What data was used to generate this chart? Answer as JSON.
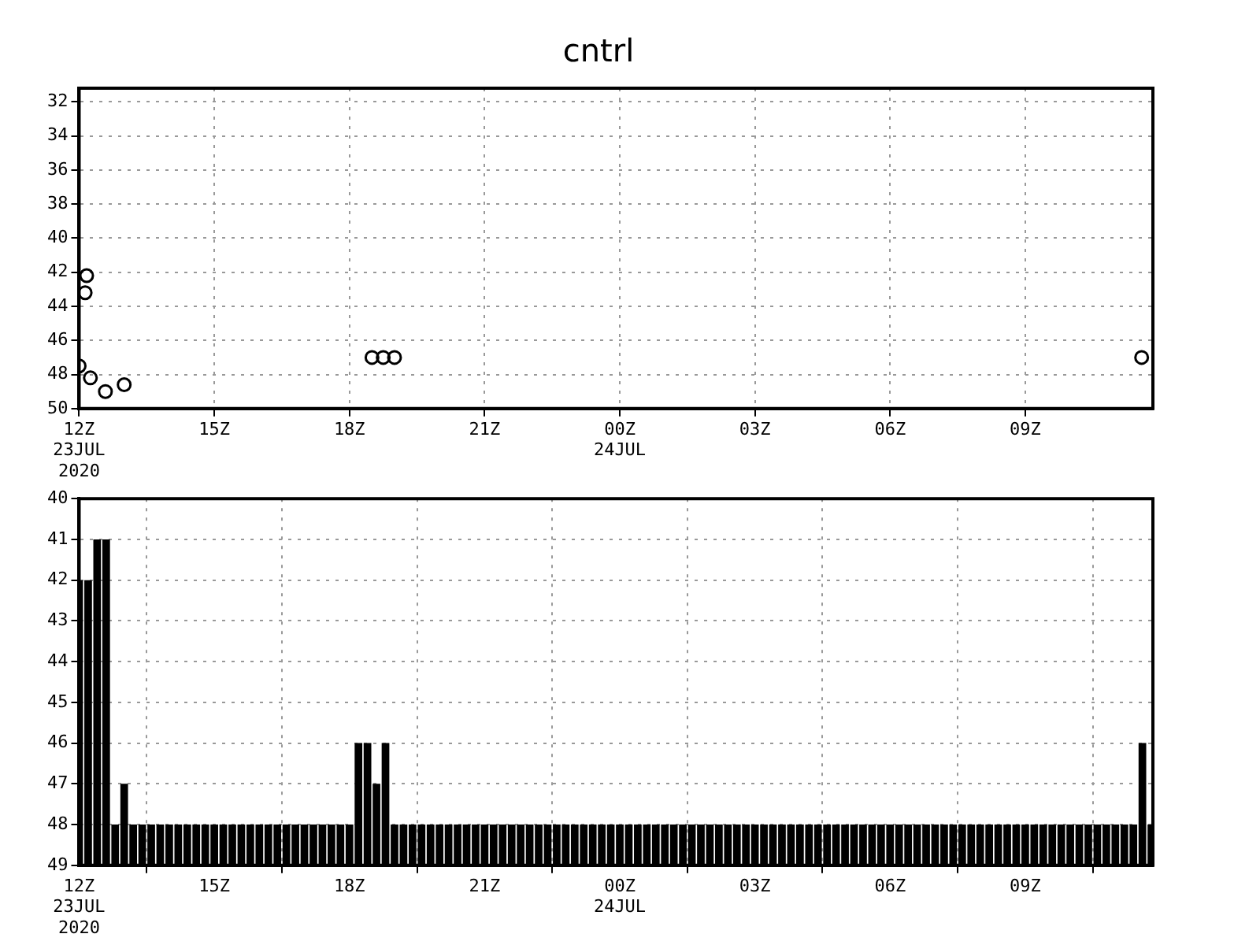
{
  "chart_data": [
    {
      "type": "scatter",
      "title": "cntrl",
      "x": [
        "2020-07-23T12:10",
        "2020-07-23T12:08",
        "2020-07-23T12:00",
        "2020-07-23T12:15",
        "2020-07-23T12:35",
        "2020-07-23T13:00",
        "2020-07-23T18:30",
        "2020-07-23T18:45",
        "2020-07-23T19:00",
        "2020-07-24T11:35"
      ],
      "values": [
        42.2,
        43.2,
        47.5,
        48.2,
        49.0,
        48.6,
        47.0,
        47.0,
        47.0,
        47.0
      ],
      "color": "#000000",
      "marker": "circle",
      "xlim": [
        "2020-07-23T12:00",
        "2020-07-24T11:50"
      ],
      "ylim": [
        50,
        31.2
      ],
      "xticks": [
        {
          "value": "2020-07-23T12:00",
          "label": "12Z\n23JUL\n2020"
        },
        {
          "value": "2020-07-23T15:00",
          "label": "15Z"
        },
        {
          "value": "2020-07-23T18:00",
          "label": "18Z"
        },
        {
          "value": "2020-07-23T21:00",
          "label": "21Z"
        },
        {
          "value": "2020-07-24T00:00",
          "label": "00Z\n24JUL"
        },
        {
          "value": "2020-07-24T03:00",
          "label": "03Z"
        },
        {
          "value": "2020-07-24T06:00",
          "label": "06Z"
        },
        {
          "value": "2020-07-24T09:00",
          "label": "09Z"
        }
      ],
      "yticks": [
        32,
        34,
        36,
        38,
        40,
        42,
        44,
        46,
        48,
        50
      ],
      "grid": true,
      "legend": false
    },
    {
      "type": "bar",
      "x": [
        "2020-07-23T12:00",
        "2020-07-23T12:12",
        "2020-07-23T12:24",
        "2020-07-23T12:36",
        "2020-07-23T12:48",
        "2020-07-23T13:00",
        "2020-07-23T13:12",
        "2020-07-23T13:24",
        "2020-07-23T13:36",
        "2020-07-23T13:48",
        "2020-07-23T14:00",
        "2020-07-23T14:12",
        "2020-07-23T14:24",
        "2020-07-23T14:36",
        "2020-07-23T14:48",
        "2020-07-23T15:00",
        "2020-07-23T15:12",
        "2020-07-23T15:24",
        "2020-07-23T15:36",
        "2020-07-23T15:48",
        "2020-07-23T16:00",
        "2020-07-23T16:12",
        "2020-07-23T16:24",
        "2020-07-23T16:36",
        "2020-07-23T16:48",
        "2020-07-23T17:00",
        "2020-07-23T17:12",
        "2020-07-23T17:24",
        "2020-07-23T17:36",
        "2020-07-23T17:48",
        "2020-07-23T18:00",
        "2020-07-23T18:12",
        "2020-07-23T18:24",
        "2020-07-23T18:36",
        "2020-07-23T18:48",
        "2020-07-23T19:00",
        "2020-07-23T19:12",
        "2020-07-23T19:24",
        "2020-07-23T19:36",
        "2020-07-23T19:48",
        "2020-07-23T20:00",
        "2020-07-23T20:12",
        "2020-07-23T20:24",
        "2020-07-23T20:36",
        "2020-07-23T20:48",
        "2020-07-23T21:00",
        "2020-07-23T21:12",
        "2020-07-23T21:24",
        "2020-07-23T21:36",
        "2020-07-23T21:48",
        "2020-07-23T22:00",
        "2020-07-23T22:12",
        "2020-07-23T22:24",
        "2020-07-23T22:36",
        "2020-07-23T22:48",
        "2020-07-23T23:00",
        "2020-07-23T23:12",
        "2020-07-23T23:24",
        "2020-07-23T23:36",
        "2020-07-23T23:48",
        "2020-07-24T00:00",
        "2020-07-24T00:12",
        "2020-07-24T00:24",
        "2020-07-24T00:36",
        "2020-07-24T00:48",
        "2020-07-24T01:00",
        "2020-07-24T01:12",
        "2020-07-24T01:24",
        "2020-07-24T01:36",
        "2020-07-24T01:48",
        "2020-07-24T02:00",
        "2020-07-24T02:12",
        "2020-07-24T02:24",
        "2020-07-24T02:36",
        "2020-07-24T02:48",
        "2020-07-24T03:00",
        "2020-07-24T03:12",
        "2020-07-24T03:24",
        "2020-07-24T03:36",
        "2020-07-24T03:48",
        "2020-07-24T04:00",
        "2020-07-24T04:12",
        "2020-07-24T04:24",
        "2020-07-24T04:36",
        "2020-07-24T04:48",
        "2020-07-24T05:00",
        "2020-07-24T05:12",
        "2020-07-24T05:24",
        "2020-07-24T05:36",
        "2020-07-24T05:48",
        "2020-07-24T06:00",
        "2020-07-24T06:12",
        "2020-07-24T06:24",
        "2020-07-24T06:36",
        "2020-07-24T06:48",
        "2020-07-24T07:00",
        "2020-07-24T07:12",
        "2020-07-24T07:24",
        "2020-07-24T07:36",
        "2020-07-24T07:48",
        "2020-07-24T08:00",
        "2020-07-24T08:12",
        "2020-07-24T08:24",
        "2020-07-24T08:36",
        "2020-07-24T08:48",
        "2020-07-24T09:00",
        "2020-07-24T09:12",
        "2020-07-24T09:24",
        "2020-07-24T09:36",
        "2020-07-24T09:48",
        "2020-07-24T10:00",
        "2020-07-24T10:12",
        "2020-07-24T10:24",
        "2020-07-24T10:36",
        "2020-07-24T10:48",
        "2020-07-24T11:00",
        "2020-07-24T11:12",
        "2020-07-24T11:24",
        "2020-07-24T11:36",
        "2020-07-24T11:48"
      ],
      "values": [
        -7,
        -7,
        -8,
        -8,
        -1,
        -2,
        -1,
        -1,
        -1,
        -1,
        -1,
        -1,
        -1,
        -1,
        -1,
        -1,
        -1,
        -1,
        -1,
        -1,
        -1,
        -1,
        -1,
        -1,
        -1,
        -1,
        -1,
        -1,
        -1,
        -1,
        -1,
        -3,
        -3,
        -2,
        -3,
        -1,
        -1,
        -1,
        -1,
        -1,
        -1,
        -1,
        -1,
        -1,
        -1,
        -1,
        -1,
        -1,
        -1,
        -1,
        -1,
        -1,
        -1,
        -1,
        -1,
        -1,
        -1,
        -1,
        -1,
        -1,
        -1,
        -1,
        -1,
        -1,
        -1,
        -1,
        -1,
        -1,
        -1,
        -1,
        -1,
        -1,
        -1,
        -1,
        -1,
        -1,
        -1,
        -1,
        -1,
        -1,
        -1,
        -1,
        -1,
        -1,
        -1,
        -1,
        -1,
        -1,
        -1,
        -1,
        -1,
        -1,
        -1,
        -1,
        -1,
        -1,
        -1,
        -1,
        -1,
        -1,
        -1,
        -1,
        -1,
        -1,
        -1,
        -1,
        -1,
        -1,
        -1,
        -1,
        -1,
        -1,
        -1,
        -1,
        -1,
        -1,
        -1,
        -1,
        -3,
        -1
      ],
      "base": [
        49,
        49,
        49,
        49,
        49,
        49,
        49,
        49,
        49,
        49,
        49,
        49,
        49,
        49,
        49,
        49,
        49,
        49,
        49,
        49,
        49,
        49,
        49,
        49,
        49,
        49,
        49,
        49,
        49,
        49,
        49,
        49,
        49,
        49,
        49,
        49,
        49,
        49,
        49,
        49,
        49,
        49,
        49,
        49,
        49,
        49,
        49,
        49,
        49,
        49,
        49,
        49,
        49,
        49,
        49,
        49,
        49,
        49,
        49,
        49,
        49,
        49,
        49,
        49,
        49,
        49,
        49,
        49,
        49,
        49,
        49,
        49,
        49,
        49,
        49,
        49,
        49,
        49,
        49,
        49,
        49,
        49,
        49,
        49,
        49,
        49,
        49,
        49,
        49,
        49,
        49,
        49,
        49,
        49,
        49,
        49,
        49,
        49,
        49,
        49,
        49,
        49,
        49,
        49,
        49,
        49,
        49,
        49,
        49,
        49,
        49,
        49,
        49,
        49,
        49,
        49,
        49,
        49,
        49,
        49
      ],
      "color": "#000000",
      "xlim": [
        "2020-07-23T12:00",
        "2020-07-24T11:50"
      ],
      "ylim": [
        49,
        40
      ],
      "xticks": [
        {
          "value": "2020-07-23T12:00",
          "label": "12Z\n23JUL\n2020"
        },
        {
          "value": "2020-07-23T15:00",
          "label": "15Z"
        },
        {
          "value": "2020-07-23T18:00",
          "label": "18Z"
        },
        {
          "value": "2020-07-23T21:00",
          "label": "21Z"
        },
        {
          "value": "2020-07-24T00:00",
          "label": "00Z\n24JUL"
        },
        {
          "value": "2020-07-24T03:00",
          "label": "03Z"
        },
        {
          "value": "2020-07-24T06:00",
          "label": "06Z"
        },
        {
          "value": "2020-07-24T09:00",
          "label": "09Z"
        }
      ],
      "yticks": [
        40,
        41,
        42,
        43,
        44,
        45,
        46,
        47,
        48,
        49
      ],
      "grid": true,
      "legend": false
    }
  ]
}
